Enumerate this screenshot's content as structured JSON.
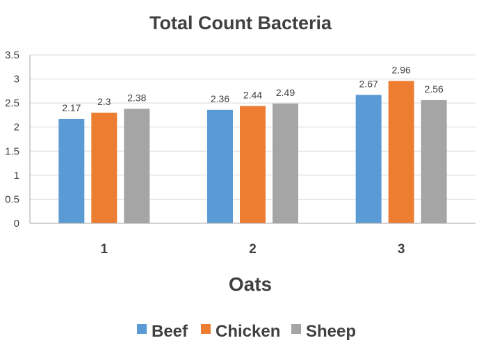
{
  "chart_data": {
    "type": "bar",
    "title": "Total Count Bacteria",
    "xlabel": "Oats",
    "ylabel": "",
    "categories": [
      "1",
      "2",
      "3"
    ],
    "series": [
      {
        "name": "Beef",
        "color": "#5b9bd5",
        "values": [
          2.17,
          2.36,
          2.67
        ],
        "labels": [
          "2.17",
          "2.36",
          "2.67"
        ]
      },
      {
        "name": "Chicken",
        "color": "#ed7d31",
        "values": [
          2.3,
          2.44,
          2.96
        ],
        "labels": [
          "2.3",
          "2.44",
          "2.96"
        ]
      },
      {
        "name": "Sheep",
        "color": "#a5a5a5",
        "values": [
          2.38,
          2.49,
          2.56
        ],
        "labels": [
          "2.38",
          "2.49",
          "2.56"
        ]
      }
    ],
    "ylim": [
      0,
      3.5
    ],
    "yticks": [
      "0",
      "0.5",
      "1",
      "1.5",
      "2",
      "2.5",
      "3",
      "3.5"
    ],
    "grid": true,
    "legend_position": "bottom"
  }
}
